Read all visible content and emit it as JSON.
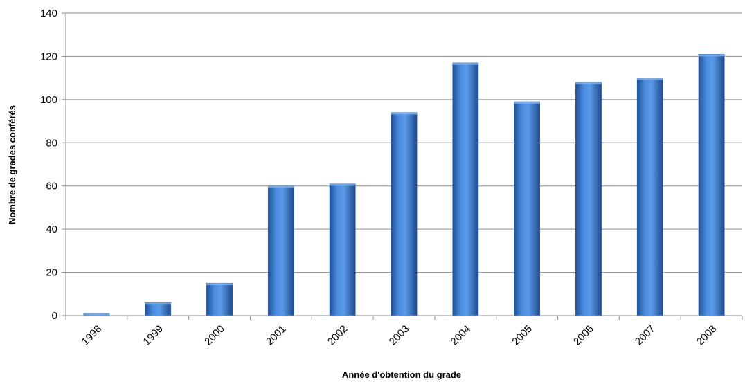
{
  "chart_data": {
    "type": "bar",
    "title": "",
    "xlabel": "Année d'obtention du grade",
    "ylabel": "Nombre de grades conférés",
    "categories": [
      "1998",
      "1999",
      "2000",
      "2001",
      "2002",
      "2003",
      "2004",
      "2005",
      "2006",
      "2007",
      "2008"
    ],
    "values": [
      1,
      6,
      15,
      60,
      61,
      94,
      117,
      99,
      108,
      110,
      121
    ],
    "ylim": [
      0,
      140
    ],
    "yticks": [
      "0",
      "20",
      "40",
      "60",
      "80",
      "100",
      "120",
      "140"
    ],
    "grid": true,
    "legend": "none",
    "bar_color": "#3f7fd0"
  }
}
